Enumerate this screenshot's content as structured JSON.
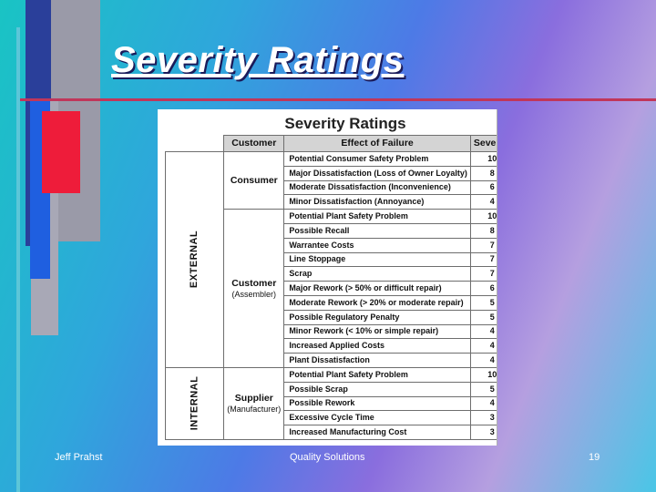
{
  "slide": {
    "title": "Severity Ratings",
    "footer_left": "Jeff Prahst",
    "footer_center": "Quality Solutions",
    "footer_right": "19"
  },
  "table": {
    "title": "Severity Ratings",
    "headers": {
      "customer": "Customer",
      "effect": "Effect of Failure",
      "severity": "Severity"
    },
    "categories": [
      {
        "name": "EXTERNAL",
        "groups": [
          {
            "customer": "Consumer",
            "sub": "",
            "rows": [
              {
                "effect": "Potential Consumer Safety Problem",
                "severity": "10"
              },
              {
                "effect": "Major Dissatisfaction (Loss of Owner Loyalty)",
                "severity": "8"
              },
              {
                "effect": "Moderate Dissatisfaction (Inconvenience)",
                "severity": "6"
              },
              {
                "effect": "Minor Dissatisfaction (Annoyance)",
                "severity": "4"
              }
            ]
          },
          {
            "customer": "Customer",
            "sub": "(Assembler)",
            "rows": [
              {
                "effect": "Potential Plant Safety Problem",
                "severity": "10"
              },
              {
                "effect": "Possible Recall",
                "severity": "8"
              },
              {
                "effect": "Warrantee Costs",
                "severity": "7"
              },
              {
                "effect": "Line Stoppage",
                "severity": "7"
              },
              {
                "effect": "Scrap",
                "severity": "7"
              },
              {
                "effect": "Major Rework (> 50% or difficult repair)",
                "severity": "6"
              },
              {
                "effect": "Moderate Rework (> 20% or moderate repair)",
                "severity": "5"
              },
              {
                "effect": "Possible Regulatory Penalty",
                "severity": "5"
              },
              {
                "effect": "Minor Rework (< 10% or simple repair)",
                "severity": "4"
              },
              {
                "effect": "Increased Applied Costs",
                "severity": "4"
              },
              {
                "effect": "Plant Dissatisfaction",
                "severity": "4"
              }
            ]
          }
        ]
      },
      {
        "name": "INTERNAL",
        "groups": [
          {
            "customer": "Supplier",
            "sub": "(Manufacturer)",
            "rows": [
              {
                "effect": "Potential Plant Safety Problem",
                "severity": "10"
              },
              {
                "effect": "Possible Scrap",
                "severity": "5"
              },
              {
                "effect": "Possible Rework",
                "severity": "4"
              },
              {
                "effect": "Excessive Cycle Time",
                "severity": "3"
              },
              {
                "effect": "Increased Manufacturing Cost",
                "severity": "3"
              }
            ]
          }
        ]
      }
    ]
  }
}
